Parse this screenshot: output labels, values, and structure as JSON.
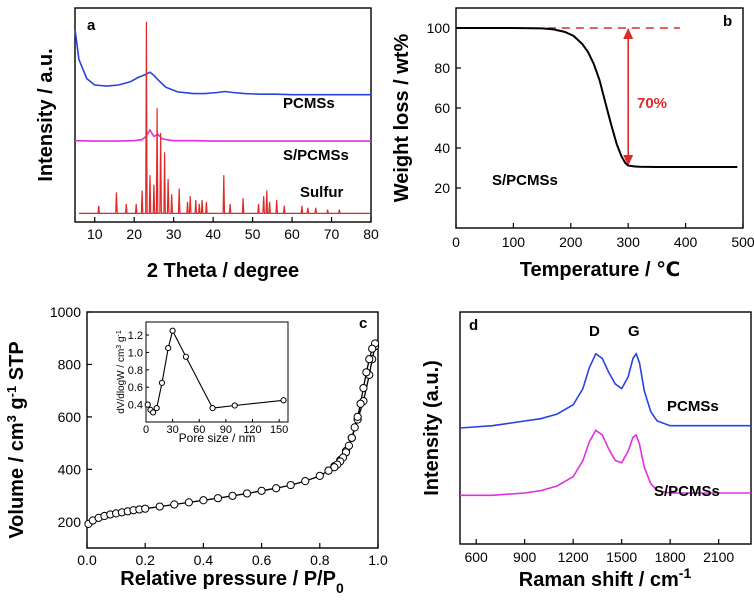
{
  "chart_data": [
    {
      "panel": "a",
      "type": "line",
      "title": "",
      "xlabel": "2 Theta / degree",
      "ylabel": "Intensity / a.u.",
      "xlim": [
        5,
        80
      ],
      "xticks": [
        10,
        20,
        30,
        40,
        50,
        60,
        70,
        80
      ],
      "series": [
        {
          "name": "PCMSs",
          "color": "#2a42e0",
          "x": [
            5,
            6,
            8,
            10,
            13,
            16,
            19,
            21,
            23,
            24,
            25,
            26,
            28,
            31,
            35,
            38,
            41,
            43,
            45,
            48,
            52,
            56,
            60,
            65,
            70,
            75,
            80
          ],
          "y": [
            0.9,
            0.76,
            0.67,
            0.64,
            0.635,
            0.64,
            0.655,
            0.675,
            0.69,
            0.7,
            0.685,
            0.665,
            0.63,
            0.608,
            0.6,
            0.6,
            0.605,
            0.61,
            0.605,
            0.6,
            0.597,
            0.597,
            0.595,
            0.595,
            0.595,
            0.595,
            0.595
          ]
        },
        {
          "name": "S/PCMSs",
          "color": "#e030e0",
          "x": [
            5,
            10,
            15,
            20,
            22,
            23,
            24,
            25,
            26,
            27,
            28,
            30,
            35,
            40,
            45,
            50,
            55,
            60,
            65,
            70,
            75,
            80
          ],
          "y": [
            0.38,
            0.378,
            0.378,
            0.38,
            0.385,
            0.4,
            0.43,
            0.4,
            0.41,
            0.39,
            0.385,
            0.38,
            0.38,
            0.378,
            0.378,
            0.378,
            0.378,
            0.378,
            0.378,
            0.378,
            0.378,
            0.378
          ]
        },
        {
          "name": "Sulfur",
          "color": "#e02a2a",
          "baseline": 0.04,
          "peaks": [
            [
              11.0,
              0.04
            ],
            [
              15.5,
              0.11
            ],
            [
              18.0,
              0.05
            ],
            [
              20.5,
              0.05
            ],
            [
              22.0,
              0.12
            ],
            [
              23.1,
              1.0
            ],
            [
              24.0,
              0.2
            ],
            [
              25.0,
              0.15
            ],
            [
              25.8,
              0.55
            ],
            [
              26.7,
              0.42
            ],
            [
              27.7,
              0.32
            ],
            [
              28.6,
              0.18
            ],
            [
              29.5,
              0.1
            ],
            [
              31.4,
              0.13
            ],
            [
              33.5,
              0.06
            ],
            [
              34.2,
              0.09
            ],
            [
              35.6,
              0.07
            ],
            [
              36.5,
              0.05
            ],
            [
              37.2,
              0.07
            ],
            [
              38.3,
              0.06
            ],
            [
              42.7,
              0.2
            ],
            [
              44.3,
              0.05
            ],
            [
              47.6,
              0.08
            ],
            [
              51.5,
              0.05
            ],
            [
              52.8,
              0.09
            ],
            [
              53.6,
              0.12
            ],
            [
              54.3,
              0.06
            ],
            [
              56.1,
              0.07
            ],
            [
              58.0,
              0.04
            ],
            [
              62.5,
              0.04
            ],
            [
              64.0,
              0.03
            ],
            [
              66.0,
              0.03
            ],
            [
              69.0,
              0.02
            ],
            [
              72.0,
              0.02
            ]
          ]
        }
      ],
      "annotations": [
        "PCMSs",
        "S/PCMSs",
        "Sulfur"
      ],
      "panel_label": "a"
    },
    {
      "panel": "b",
      "type": "line",
      "xlabel": "Temperature / ℃",
      "ylabel": "Weight loss / wt%",
      "xlim": [
        0,
        500
      ],
      "ylim": [
        0,
        110
      ],
      "xticks": [
        0,
        100,
        200,
        300,
        400,
        500
      ],
      "yticks": [
        20,
        40,
        60,
        80,
        100
      ],
      "series": [
        {
          "name": "S/PCMSs",
          "color": "#000000",
          "x": [
            0,
            50,
            100,
            150,
            170,
            190,
            205,
            220,
            230,
            240,
            250,
            260,
            270,
            280,
            288,
            295,
            300,
            310,
            320,
            350,
            400,
            450,
            490
          ],
          "y": [
            100,
            100,
            100,
            99.8,
            99.3,
            98,
            96,
            92,
            88,
            82,
            74,
            63,
            52,
            42,
            36,
            32.5,
            31.2,
            30.8,
            30.6,
            30.5,
            30.5,
            30.5,
            30.5
          ]
        }
      ],
      "reference_line": {
        "y": 100,
        "x_start": 160,
        "x_end": 390,
        "color": "#e02a2a"
      },
      "arrow": {
        "x": 300,
        "y_from": 100,
        "y_to": 31,
        "color": "#e02a2a"
      },
      "arrow_label": "70%",
      "series_label": "S/PCMSs",
      "panel_label": "b"
    },
    {
      "panel": "c",
      "type": "scatter",
      "xlabel": "Relative pressure / P/P0",
      "ylabel": "Volume / cm3 g-1 STP",
      "xlim": [
        0,
        1.0
      ],
      "ylim": [
        100,
        1000
      ],
      "xticks": [
        0.0,
        0.2,
        0.4,
        0.6,
        0.8,
        1.0
      ],
      "yticks": [
        200,
        400,
        600,
        800,
        1000
      ],
      "series": [
        {
          "name": "adsorption",
          "color": "#000000",
          "x": [
            0.005,
            0.02,
            0.04,
            0.06,
            0.08,
            0.1,
            0.12,
            0.14,
            0.16,
            0.18,
            0.2,
            0.25,
            0.3,
            0.35,
            0.4,
            0.45,
            0.5,
            0.55,
            0.6,
            0.65,
            0.7,
            0.75,
            0.8,
            0.83,
            0.85,
            0.87,
            0.89,
            0.91,
            0.93,
            0.95,
            0.97,
            0.98,
            0.99
          ],
          "y": [
            192,
            205,
            215,
            222,
            228,
            232,
            236,
            240,
            244,
            247,
            250,
            258,
            266,
            274,
            282,
            290,
            299,
            308,
            318,
            328,
            340,
            355,
            375,
            395,
            412,
            435,
            470,
            520,
            590,
            660,
            760,
            820,
            870
          ]
        },
        {
          "name": "desorption",
          "color": "#000000",
          "x": [
            0.99,
            0.98,
            0.97,
            0.96,
            0.95,
            0.94,
            0.93,
            0.92,
            0.91,
            0.9,
            0.89,
            0.88,
            0.87,
            0.86,
            0.85,
            0.83
          ],
          "y": [
            880,
            860,
            820,
            770,
            710,
            650,
            600,
            560,
            520,
            490,
            465,
            445,
            430,
            418,
            408,
            395
          ]
        }
      ],
      "inset": {
        "xlabel": "Pore size / nm",
        "ylabel": "dV/dlogW / cm3 g-1",
        "xlim": [
          0,
          160
        ],
        "ylim": [
          0.2,
          1.35
        ],
        "xticks": [
          0,
          30,
          60,
          90,
          120,
          150
        ],
        "yticks": [
          0.4,
          0.6,
          0.8,
          1.0,
          1.2
        ],
        "x": [
          2,
          5,
          8,
          12,
          18,
          25,
          30,
          45,
          75,
          100,
          155
        ],
        "y": [
          0.4,
          0.34,
          0.31,
          0.36,
          0.65,
          1.05,
          1.25,
          0.95,
          0.36,
          0.39,
          0.45
        ]
      },
      "panel_label": "c"
    },
    {
      "panel": "d",
      "type": "line",
      "xlabel": "Raman shift / cm-1",
      "ylabel": "Intensity (a.u.)",
      "xlim": [
        500,
        2300
      ],
      "xticks": [
        600,
        900,
        1200,
        1500,
        1800,
        2100
      ],
      "series": [
        {
          "name": "PCMSs",
          "color": "#2a42e0",
          "x": [
            500,
            700,
            900,
            1000,
            1100,
            1200,
            1260,
            1300,
            1340,
            1380,
            1420,
            1460,
            1500,
            1540,
            1570,
            1590,
            1610,
            1640,
            1680,
            1720,
            1800,
            1900,
            2000,
            2100,
            2200,
            2300
          ],
          "y": [
            0.5,
            0.51,
            0.53,
            0.54,
            0.56,
            0.6,
            0.67,
            0.76,
            0.82,
            0.8,
            0.74,
            0.69,
            0.67,
            0.72,
            0.8,
            0.82,
            0.78,
            0.66,
            0.57,
            0.53,
            0.51,
            0.51,
            0.51,
            0.51,
            0.51,
            0.51
          ]
        },
        {
          "name": "S/PCMSs",
          "color": "#e030e0",
          "x": [
            500,
            700,
            900,
            1000,
            1100,
            1200,
            1260,
            1300,
            1340,
            1380,
            1420,
            1460,
            1500,
            1540,
            1570,
            1590,
            1610,
            1640,
            1680,
            1720,
            1800,
            1900,
            2000,
            2100,
            2200,
            2300
          ],
          "y": [
            0.21,
            0.21,
            0.22,
            0.23,
            0.25,
            0.29,
            0.36,
            0.44,
            0.49,
            0.47,
            0.41,
            0.36,
            0.35,
            0.4,
            0.46,
            0.47,
            0.43,
            0.33,
            0.26,
            0.23,
            0.22,
            0.22,
            0.22,
            0.22,
            0.22,
            0.22
          ]
        }
      ],
      "annotations": [
        "D",
        "G",
        "PCMSs",
        "S/PCMSs"
      ],
      "panel_label": "d"
    }
  ],
  "text": {
    "a_xlabel": "2 Theta / degree",
    "a_ylabel": "Intensity / a.u.",
    "a_label": "a",
    "a_pcmss": "PCMSs",
    "a_spcmss": "S/PCMSs",
    "a_sulfur": "Sulfur",
    "b_xlabel": "Temperature / ℃",
    "b_ylabel": "Weight loss / wt%",
    "b_label": "b",
    "b_pct": "70%",
    "b_series": "S/PCMSs",
    "c_xlabel_main": "Relative pressure / P/P",
    "c_xlabel_sub": "0",
    "c_ylabel_a": "Volume / cm",
    "c_ylabel_sup1": "3",
    "c_ylabel_b": " g",
    "c_ylabel_sup2": "-1",
    "c_ylabel_c": " STP",
    "c_label": "c",
    "c_inset_xlabel": "Pore size / nm",
    "c_inset_ylabel_a": "dV/dlogW / cm",
    "c_inset_ylabel_sup1": "3",
    "c_inset_ylabel_b": " g",
    "c_inset_ylabel_sup2": "-1",
    "d_xlabel_main": "Raman shift / cm",
    "d_xlabel_sup": "-1",
    "d_ylabel": "Intensity (a.u.)",
    "d_label": "d",
    "d_D": "D",
    "d_G": "G",
    "d_pcmss": "PCMSs",
    "d_spcmss": "S/PCMSs"
  },
  "colors": {
    "blue": "#2a42e0",
    "magenta": "#e030e0",
    "red": "#e02a2a",
    "black": "#000000"
  }
}
